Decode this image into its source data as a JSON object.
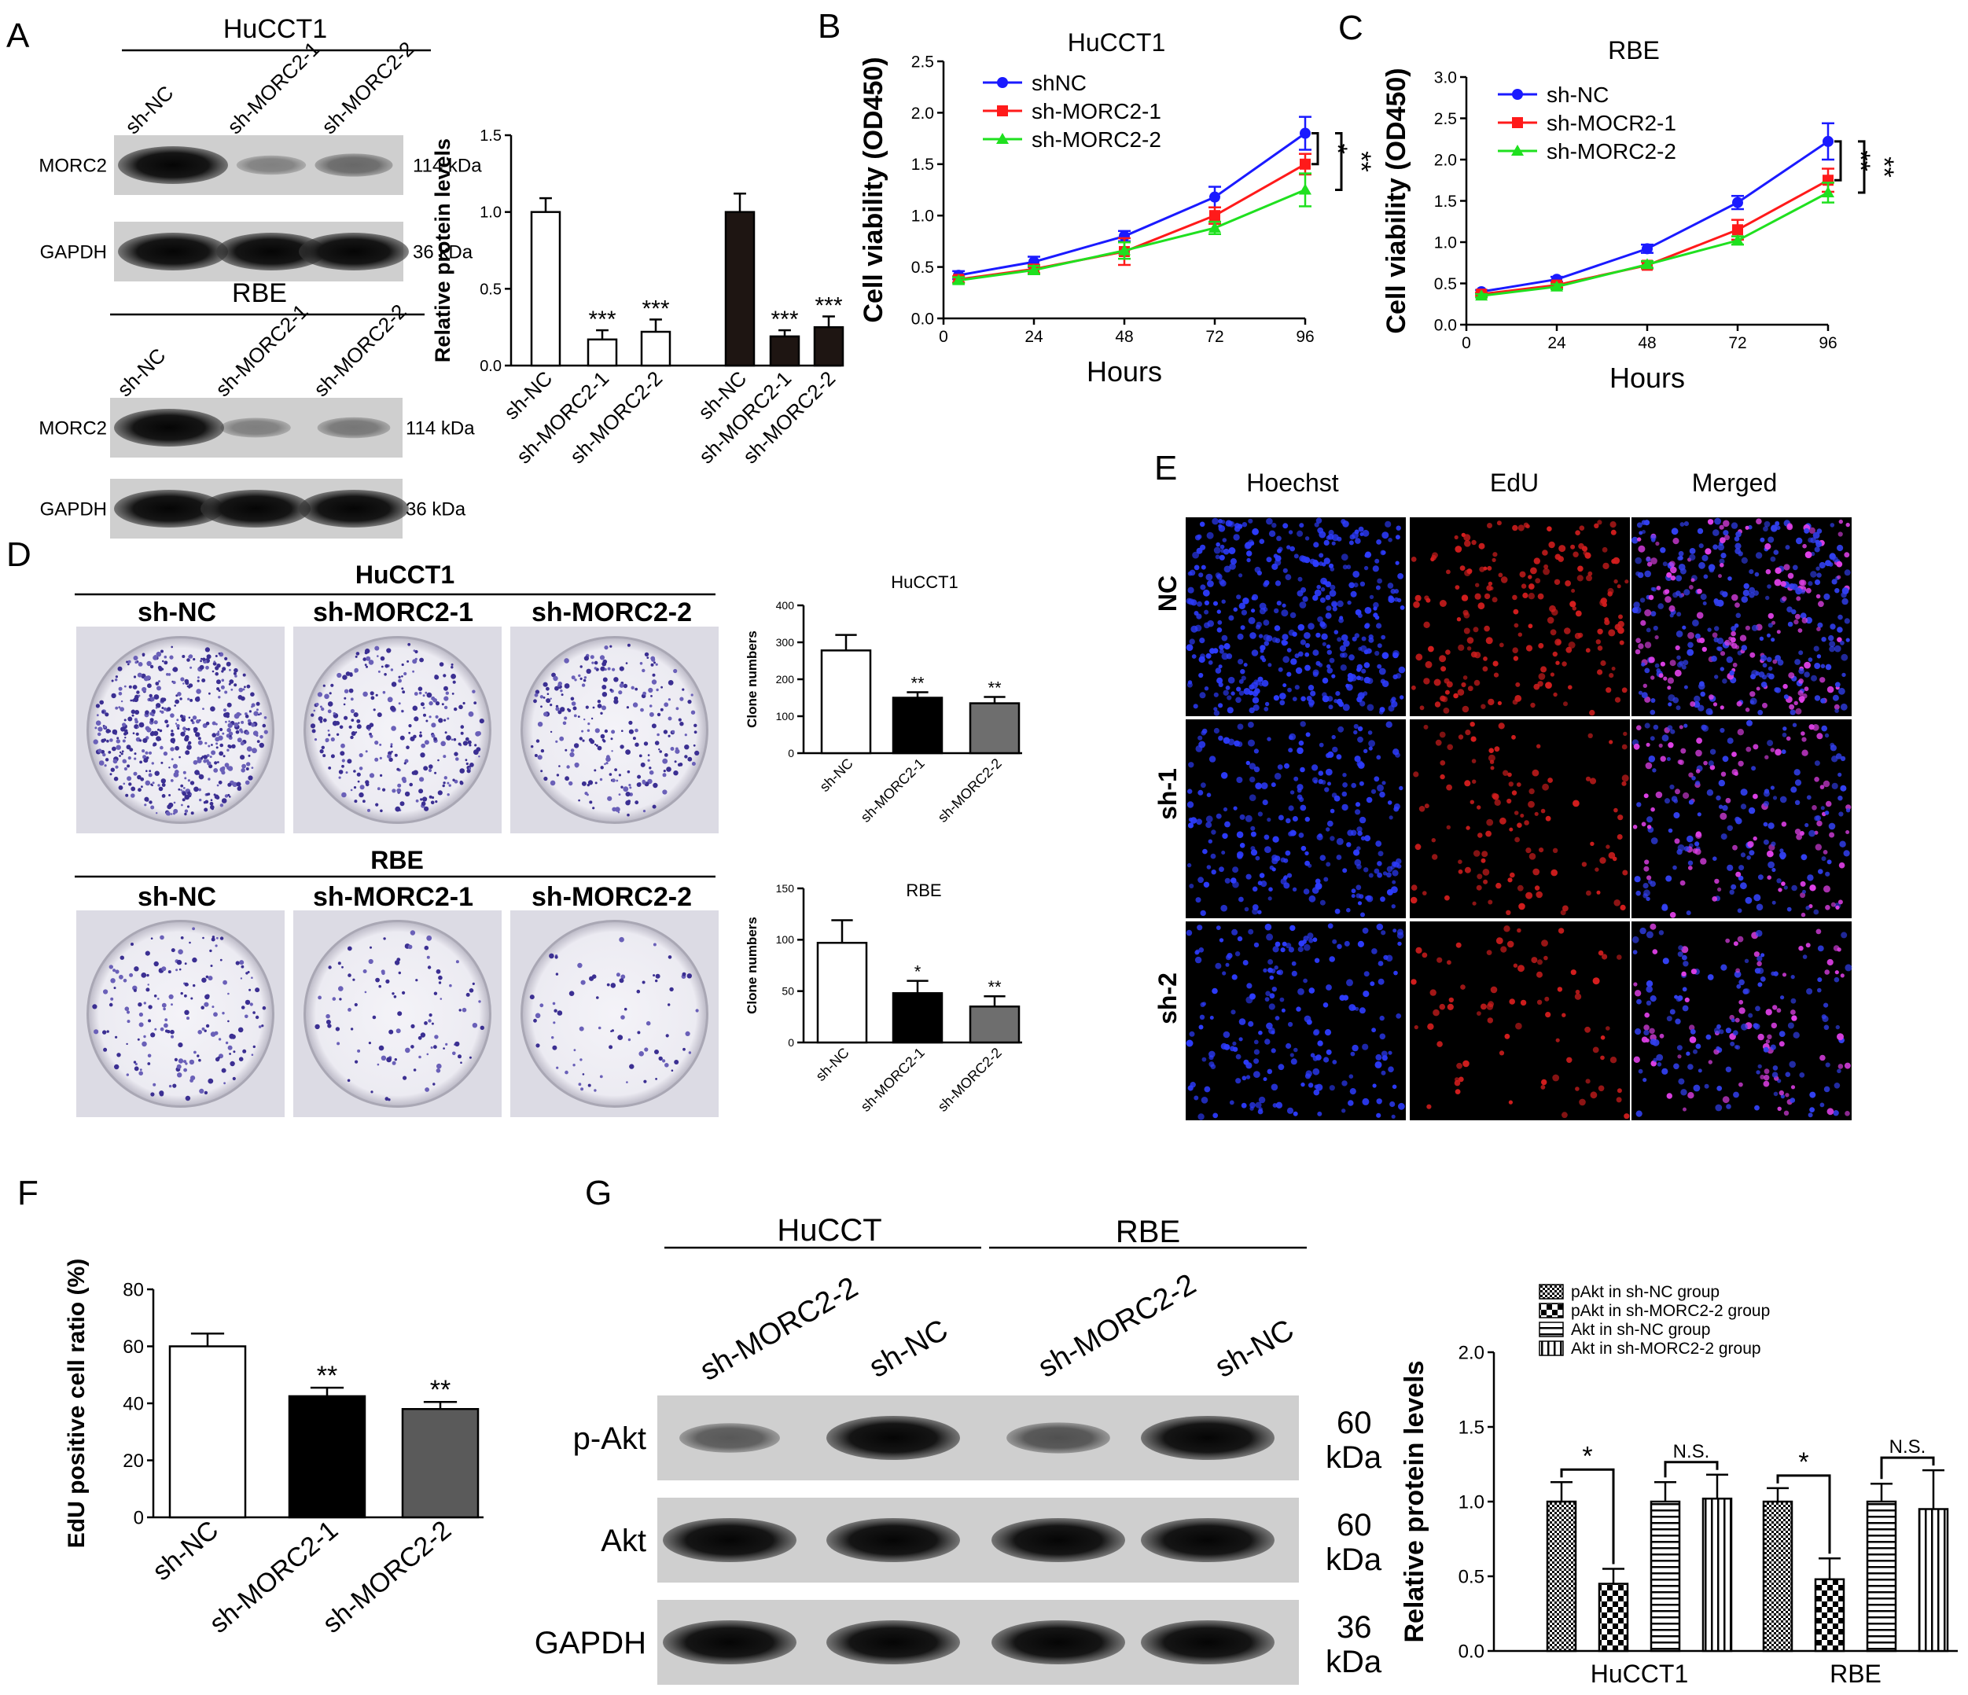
{
  "panels": {
    "A": {
      "letter": "A",
      "huc_label": "HuCCT1",
      "rbe_label": "RBE",
      "lanes": [
        "sh-NC",
        "sh-MORC2-1",
        "sh-MORC2-2"
      ],
      "rows": [
        {
          "protein": "MORC2",
          "kda": "114 kDa",
          "intensity": [
            1.0,
            0.18,
            0.35
          ]
        },
        {
          "protein": "GAPDH",
          "kda": "36 kDa",
          "intensity": [
            1.0,
            1.0,
            1.0
          ]
        }
      ],
      "rbe_rows": [
        {
          "protein": "MORC2",
          "kda": "114 kDa",
          "intensity": [
            1.0,
            0.2,
            0.25
          ]
        },
        {
          "protein": "GAPDH",
          "kda": "36 kDa",
          "intensity": [
            1.0,
            1.0,
            1.0
          ]
        }
      ]
    },
    "B": {
      "letter": "B"
    },
    "C": {
      "letter": "C"
    },
    "D": {
      "letter": "D",
      "huc_label": "HuCCT1",
      "rbe_label": "RBE",
      "lanes": [
        "sh-NC",
        "sh-MORC2-1",
        "sh-MORC2-2"
      ],
      "colony_density": [
        1.0,
        0.55,
        0.5
      ],
      "rbe_colony_density": [
        0.35,
        0.2,
        0.15
      ]
    },
    "E": {
      "letter": "E",
      "columns": [
        "Hoechst",
        "EdU",
        "Merged"
      ],
      "rows": [
        "NC",
        "sh-1",
        "sh-2"
      ]
    },
    "F": {
      "letter": "F"
    },
    "G": {
      "letter": "G",
      "groups": [
        "HuCCT",
        "RBE"
      ],
      "lanes": [
        "sh-MORC2-2",
        "sh-NC",
        "sh-MORC2-2",
        "sh-NC"
      ],
      "rows": [
        {
          "protein": "p-Akt",
          "kda_top": "60",
          "kda_bottom": "kDa",
          "intensity": [
            0.45,
            1.0,
            0.5,
            1.0
          ]
        },
        {
          "protein": "Akt",
          "kda_top": "60",
          "kda_bottom": "kDa",
          "intensity": [
            1.0,
            1.0,
            1.0,
            1.0
          ]
        },
        {
          "protein": "GAPDH",
          "kda_top": "36",
          "kda_bottom": "kDa",
          "intensity": [
            1.0,
            1.0,
            1.0,
            1.0
          ]
        }
      ]
    }
  },
  "chart_data": [
    {
      "id": "A-bar",
      "type": "bar",
      "ylabel": "Relative protein levels",
      "ylim": [
        0,
        1.5
      ],
      "yticks": [
        "0.0",
        "0.5",
        "1.0",
        "1.5"
      ],
      "categories": [
        "sh-NC",
        "sh-MORC2-1",
        "sh-MORC2-2",
        "sh-NC",
        "sh-MORC2-1",
        "sh-MORC2-2"
      ],
      "values": [
        1.0,
        0.17,
        0.22,
        1.0,
        0.19,
        0.25
      ],
      "errors": [
        0.09,
        0.06,
        0.08,
        0.12,
        0.04,
        0.07
      ],
      "colors": [
        "#ffffff",
        "#ffffff",
        "#ffffff",
        "#1e1512",
        "#1e1512",
        "#1e1512"
      ],
      "sig": [
        "",
        "***",
        "***",
        "",
        "***",
        "***"
      ]
    },
    {
      "id": "B-line",
      "type": "line",
      "title": "HuCCT1",
      "xlabel": "Hours",
      "ylabel": "Cell viability (OD450)",
      "xlim": [
        0,
        96
      ],
      "ylim": [
        0,
        2.5
      ],
      "x": [
        4,
        24,
        48,
        72,
        96
      ],
      "xticks": [
        "0",
        "24",
        "48",
        "72",
        "96"
      ],
      "yticks": [
        "0.0",
        "0.5",
        "1.0",
        "1.5",
        "2.0",
        "2.5"
      ],
      "series": [
        {
          "name": "shNC",
          "color": "#1a1aff",
          "marker": "circle",
          "values": [
            0.42,
            0.55,
            0.8,
            1.18,
            1.8
          ],
          "errors": [
            0.04,
            0.05,
            0.05,
            0.1,
            0.16
          ]
        },
        {
          "name": "sh-MORC2-1",
          "color": "#ff1a1a",
          "marker": "square",
          "values": [
            0.38,
            0.48,
            0.65,
            1.0,
            1.5
          ],
          "errors": [
            0.03,
            0.04,
            0.13,
            0.08,
            0.1
          ]
        },
        {
          "name": "sh-MORC2-2",
          "color": "#1fe01f",
          "marker": "triangle",
          "values": [
            0.37,
            0.47,
            0.66,
            0.88,
            1.25
          ],
          "errors": [
            0.03,
            0.04,
            0.08,
            0.06,
            0.16
          ]
        }
      ],
      "sig": [
        "*",
        "**"
      ]
    },
    {
      "id": "C-line",
      "type": "line",
      "title": "RBE",
      "xlabel": "Hours",
      "ylabel": "Cell viability (OD450)",
      "xlim": [
        0,
        96
      ],
      "ylim": [
        0,
        3.0
      ],
      "x": [
        4,
        24,
        48,
        72,
        96
      ],
      "xticks": [
        "0",
        "24",
        "48",
        "72",
        "96"
      ],
      "yticks": [
        "0.0",
        "0.5",
        "1.0",
        "1.5",
        "2.0",
        "2.5",
        "3.0"
      ],
      "series": [
        {
          "name": "sh-NC",
          "color": "#1a1aff",
          "marker": "circle",
          "values": [
            0.4,
            0.55,
            0.92,
            1.48,
            2.22
          ],
          "errors": [
            0.02,
            0.03,
            0.05,
            0.08,
            0.22
          ]
        },
        {
          "name": "sh-MOCR2-1",
          "color": "#ff1a1a",
          "marker": "square",
          "values": [
            0.37,
            0.48,
            0.72,
            1.15,
            1.75
          ],
          "errors": [
            0.02,
            0.03,
            0.04,
            0.12,
            0.14
          ]
        },
        {
          "name": "sh-MORC2-2",
          "color": "#1fe01f",
          "marker": "triangle",
          "values": [
            0.35,
            0.46,
            0.73,
            1.02,
            1.6
          ],
          "errors": [
            0.02,
            0.03,
            0.04,
            0.05,
            0.12
          ]
        }
      ],
      "sig": [
        "**",
        "**"
      ]
    },
    {
      "id": "D-bar-huc",
      "type": "bar",
      "title": "HuCCT1",
      "ylabel": "Clone numbers",
      "ylim": [
        0,
        400
      ],
      "yticks": [
        "0",
        "100",
        "200",
        "300",
        "400"
      ],
      "categories": [
        "sh-NC",
        "sh-MORC2-1",
        "sh-MORC2-2"
      ],
      "values": [
        278,
        150,
        135
      ],
      "errors": [
        42,
        15,
        17
      ],
      "colors": [
        "#ffffff",
        "#000000",
        "#6e6e6e"
      ],
      "sig": [
        "",
        "**",
        "**"
      ]
    },
    {
      "id": "D-bar-rbe",
      "type": "bar",
      "title": "RBE",
      "ylabel": "Clone numbers",
      "ylim": [
        0,
        150
      ],
      "yticks": [
        "0",
        "50",
        "100",
        "150"
      ],
      "categories": [
        "sh-NC",
        "sh-MORC2-1",
        "sh-MORC2-2"
      ],
      "values": [
        97,
        48,
        35
      ],
      "errors": [
        22,
        12,
        10
      ],
      "colors": [
        "#ffffff",
        "#000000",
        "#6e6e6e"
      ],
      "sig": [
        "",
        "*",
        "**"
      ]
    },
    {
      "id": "F-bar",
      "type": "bar",
      "ylabel": "EdU positive cell ratio (%)",
      "ylim": [
        0,
        80
      ],
      "yticks": [
        "0",
        "20",
        "40",
        "60",
        "80"
      ],
      "categories": [
        "sh-NC",
        "sh-MORC2-1",
        "sh-MORC2-2"
      ],
      "values": [
        60,
        42.5,
        38
      ],
      "errors": [
        4.5,
        3,
        2.5
      ],
      "colors": [
        "#ffffff",
        "#000000",
        "#5a5a5a"
      ],
      "sig": [
        "",
        "**",
        "**"
      ]
    },
    {
      "id": "G-bar",
      "type": "bar",
      "ylabel": "Relative protein levels",
      "ylim": [
        0,
        2.0
      ],
      "yticks": [
        "0.0",
        "0.5",
        "1.0",
        "1.5",
        "2.0"
      ],
      "categories": [
        "HuCCT1",
        "RBE"
      ],
      "series": [
        {
          "name": "pAkt in sh-NC group",
          "pattern": "dots",
          "values": [
            1.0,
            1.0
          ],
          "errors": [
            0.13,
            0.09
          ]
        },
        {
          "name": "pAkt in sh-MORC2-2 group",
          "pattern": "checker",
          "values": [
            0.45,
            0.48
          ],
          "errors": [
            0.1,
            0.14
          ]
        },
        {
          "name": "Akt in sh-NC group",
          "pattern": "hlines",
          "values": [
            1.0,
            1.0
          ],
          "errors": [
            0.13,
            0.12
          ]
        },
        {
          "name": "Akt in sh-MORC2-2 group",
          "pattern": "vlines",
          "values": [
            1.02,
            0.95
          ],
          "errors": [
            0.16,
            0.26
          ]
        }
      ],
      "sig": [
        "*",
        "N.S.",
        "*",
        "N.S."
      ]
    }
  ]
}
